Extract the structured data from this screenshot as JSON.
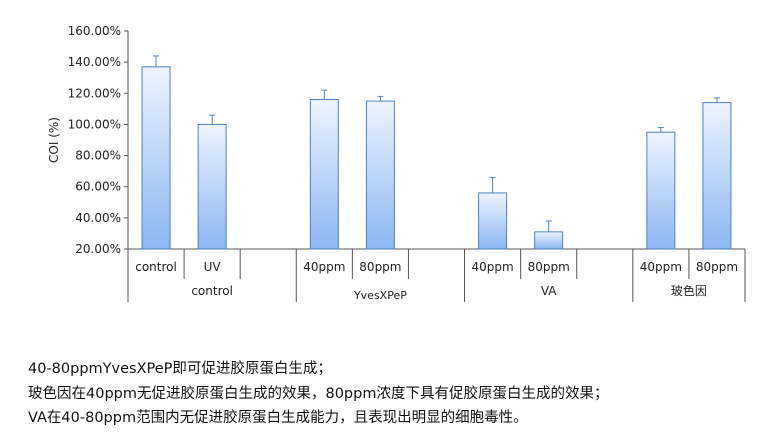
{
  "chart_data": {
    "type": "bar",
    "ylabel": "COI (%)",
    "ylim": [
      20,
      160
    ],
    "yticks": [
      "20.00%",
      "40.00%",
      "60.00%",
      "80.00%",
      "100.00%",
      "120.00%",
      "140.00%",
      "160.00%"
    ],
    "categories": [
      "control",
      "UV",
      "",
      "40ppm",
      "80ppm",
      "",
      "40ppm",
      "80ppm",
      "",
      "40ppm",
      "80ppm"
    ],
    "values": [
      137,
      100,
      null,
      116,
      115,
      null,
      56,
      31,
      null,
      95,
      114
    ],
    "error_upper": [
      144,
      106,
      null,
      122,
      118,
      null,
      66,
      38,
      null,
      98,
      117
    ],
    "groups": [
      {
        "label": "control",
        "start": 0,
        "end": 2
      },
      {
        "label": "YvesXPeP",
        "start": 3,
        "end": 5
      },
      {
        "label": "VA",
        "start": 6,
        "end": 8
      },
      {
        "label": "玻色因",
        "start": 9,
        "end": 10
      }
    ],
    "colors": {
      "bar_top": "#e8f0fd",
      "bar_bottom": "#8fb8f2",
      "bar_stroke": "#4f81bd",
      "axis": "#555555"
    }
  },
  "notes": [
    "40-80ppmYvesXPeP即可促进胶原蛋白生成；",
    "玻色因在40ppm无促进胶原蛋白生成的效果，80ppm浓度下具有促胶原蛋白生成的效果；",
    "VA在40-80ppm范围内无促进胶原蛋白生成能力，且表现出明显的细胞毒性。"
  ]
}
